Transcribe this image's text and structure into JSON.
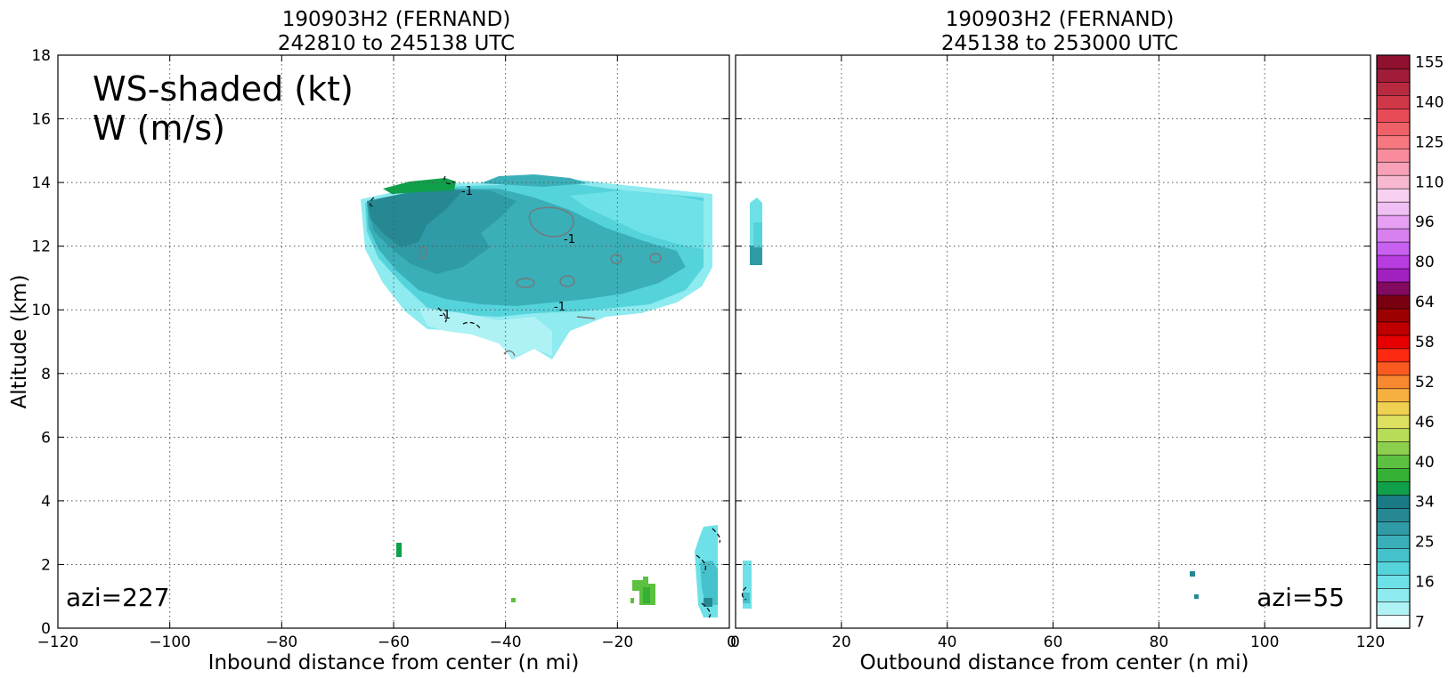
{
  "chart_data": [
    {
      "type": "heatmap",
      "title": "190903H2 (FERNAND)",
      "subtitle": "242810 to 245138 UTC",
      "xlabel": "Inbound distance from center (n mi)",
      "ylabel": "Altitude (km)",
      "xlim": [
        -120,
        0
      ],
      "ylim": [
        0,
        18
      ],
      "x_ticks": [
        "−120",
        "−100",
        "−80",
        "−60",
        "−40",
        "−20",
        "0"
      ],
      "y_ticks": [
        "0",
        "2",
        "4",
        "6",
        "8",
        "10",
        "12",
        "14",
        "16",
        "18"
      ],
      "grid": true,
      "annotation_main": "WS-shaded (kt)",
      "annotation_sub": "W (m/s)",
      "azimuth_label": "azi=227",
      "contour_labels": [
        "-1",
        "-1",
        "-1",
        "-1"
      ]
    },
    {
      "type": "heatmap",
      "title": "190903H2 (FERNAND)",
      "subtitle": "245138 to 253000 UTC",
      "xlabel": "Outbound distance from center (n mi)",
      "xlim": [
        0,
        120
      ],
      "ylim": [
        0,
        18
      ],
      "x_ticks": [
        "0",
        "20",
        "40",
        "60",
        "80",
        "100",
        "120"
      ],
      "grid": true,
      "azimuth_label": "azi=55"
    }
  ],
  "colorbar": {
    "tick_labels": [
      "7",
      "16",
      "25",
      "34",
      "40",
      "46",
      "52",
      "58",
      "64",
      "80",
      "96",
      "110",
      "125",
      "140",
      "155"
    ],
    "colors": [
      "#f5ffff",
      "#aef2f5",
      "#8eebf0",
      "#6ee1e8",
      "#55d3db",
      "#45c2cb",
      "#3aafb8",
      "#2f9ba6",
      "#268893",
      "#1a7a86",
      "#10a04a",
      "#34b034",
      "#5cc040",
      "#8ccf4c",
      "#b8dc58",
      "#dde060",
      "#f0d050",
      "#f6b040",
      "#f88830",
      "#fa5a20",
      "#fc2a10",
      "#e60000",
      "#c00000",
      "#9c0000",
      "#7a0010",
      "#820a60",
      "#a020c0",
      "#b83ce0",
      "#c860f0",
      "#d880f0",
      "#e8a0f4",
      "#f0c0f4",
      "#f8d0f0",
      "#f8b8d0",
      "#f8a0b8",
      "#f88c9c",
      "#f87880",
      "#f06068",
      "#e84a58",
      "#d03848",
      "#b82a40",
      "#a01c38",
      "#901030"
    ]
  }
}
